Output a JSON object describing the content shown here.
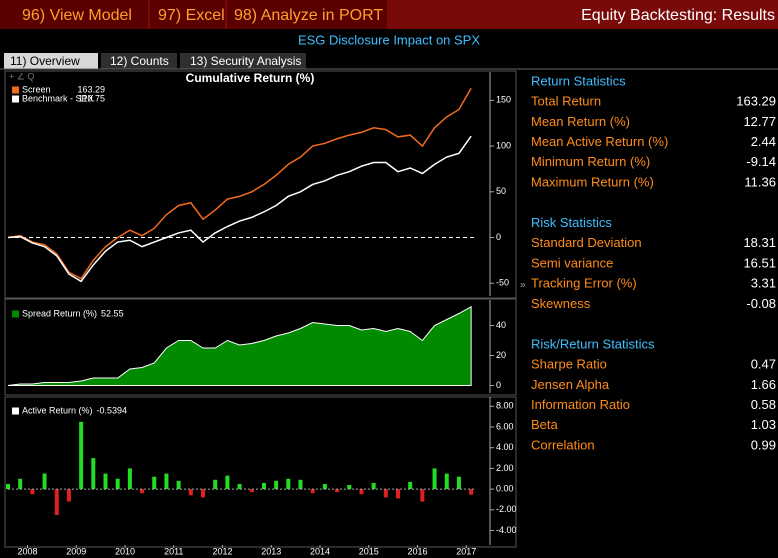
{
  "toolbar": {
    "buttons": [
      "96) View Model",
      "97) Excel",
      "98) Analyze in PORT"
    ],
    "title": "Equity Backtesting: Results"
  },
  "subtitle": "ESG Disclosure Impact on SPX",
  "tabs": [
    "11) Overview",
    "12) Counts",
    "13) Security Analysis"
  ],
  "chart_data": [
    {
      "type": "line",
      "title": "Cumulative Return (%)",
      "x": [
        2007.6,
        2007.85,
        2008.1,
        2008.35,
        2008.6,
        2008.85,
        2009.1,
        2009.35,
        2009.6,
        2009.85,
        2010.1,
        2010.35,
        2010.6,
        2010.85,
        2011.1,
        2011.35,
        2011.6,
        2011.85,
        2012.1,
        2012.35,
        2012.6,
        2012.85,
        2013.1,
        2013.35,
        2013.6,
        2013.85,
        2014.1,
        2014.35,
        2014.6,
        2014.85,
        2015.1,
        2015.35,
        2015.6,
        2015.85,
        2016.1,
        2016.35,
        2016.6,
        2016.85,
        2017.1
      ],
      "series": [
        {
          "name": "Screen",
          "color": "#f26b1d",
          "values": [
            0,
            2,
            -5,
            -8,
            -18,
            -38,
            -45,
            -25,
            -10,
            0,
            8,
            2,
            10,
            25,
            35,
            38,
            20,
            30,
            42,
            45,
            50,
            58,
            68,
            80,
            88,
            100,
            103,
            108,
            112,
            115,
            120,
            118,
            110,
            112,
            100,
            120,
            132,
            140,
            163.29
          ]
        },
        {
          "name": "Benchmark - SPX",
          "color": "#ffffff",
          "values": [
            0,
            1,
            -6,
            -10,
            -20,
            -40,
            -48,
            -30,
            -15,
            -5,
            -3,
            -10,
            -5,
            0,
            5,
            8,
            -5,
            5,
            12,
            18,
            22,
            28,
            35,
            45,
            50,
            58,
            62,
            68,
            72,
            78,
            82,
            82,
            72,
            76,
            70,
            80,
            88,
            92,
            110.75
          ]
        }
      ],
      "xlim": [
        2007.6,
        2017.2
      ],
      "ylim": [
        -64,
        181
      ],
      "yticks": [
        150,
        100,
        50,
        0,
        -50
      ],
      "zero_line": true
    },
    {
      "type": "area",
      "x": [
        2007.6,
        2007.85,
        2008.1,
        2008.35,
        2008.6,
        2008.85,
        2009.1,
        2009.35,
        2009.6,
        2009.85,
        2010.1,
        2010.35,
        2010.6,
        2010.85,
        2011.1,
        2011.35,
        2011.6,
        2011.85,
        2012.1,
        2012.35,
        2012.6,
        2012.85,
        2013.1,
        2013.35,
        2013.6,
        2013.85,
        2014.1,
        2014.35,
        2014.6,
        2014.85,
        2015.1,
        2015.35,
        2015.6,
        2015.85,
        2016.1,
        2016.35,
        2016.6,
        2016.85,
        2017.1
      ],
      "series": [
        {
          "name": "Spread Return (%)",
          "color": "#008a00",
          "values": [
            0,
            1,
            1,
            2,
            2,
            2,
            3,
            5,
            5,
            5,
            11,
            12,
            15,
            25,
            30,
            30,
            25,
            25,
            30,
            27,
            28,
            30,
            33,
            35,
            38,
            42,
            41,
            40,
            40,
            37,
            38,
            36,
            38,
            36,
            30,
            40,
            44,
            48,
            52.55
          ]
        }
      ],
      "xlim": [
        2007.6,
        2017.2
      ],
      "ylim": [
        -5,
        57
      ],
      "yticks": [
        40,
        20,
        0
      ]
    },
    {
      "type": "bar",
      "x": [
        2007.6,
        2007.85,
        2008.1,
        2008.35,
        2008.6,
        2008.85,
        2009.1,
        2009.35,
        2009.6,
        2009.85,
        2010.1,
        2010.35,
        2010.6,
        2010.85,
        2011.1,
        2011.35,
        2011.6,
        2011.85,
        2012.1,
        2012.35,
        2012.6,
        2012.85,
        2013.1,
        2013.35,
        2013.6,
        2013.85,
        2014.1,
        2014.35,
        2014.6,
        2014.85,
        2015.1,
        2015.35,
        2015.6,
        2015.85,
        2016.1,
        2016.35,
        2016.6,
        2016.85,
        2017.1
      ],
      "series": [
        {
          "name": "Active Return (%)",
          "values": [
            0.5,
            1.0,
            -0.5,
            1.5,
            -2.5,
            -1.2,
            6.5,
            3.0,
            1.5,
            1.0,
            2.0,
            -0.4,
            1.2,
            1.5,
            0.8,
            -0.6,
            -0.8,
            0.9,
            1.3,
            0.5,
            -0.3,
            0.6,
            0.8,
            1.0,
            0.9,
            -0.4,
            0.5,
            -0.3,
            0.4,
            -0.5,
            0.6,
            -0.8,
            -0.9,
            0.7,
            -1.2,
            2.0,
            1.5,
            1.2,
            -0.5394
          ]
        }
      ],
      "positive_color": "#22dd22",
      "negative_color": "#e02020",
      "xlim": [
        2007.6,
        2017.2
      ],
      "xticks": [
        2008,
        2009,
        2010,
        2011,
        2012,
        2013,
        2014,
        2015,
        2016,
        2017
      ],
      "ylim": [
        -5.4,
        8.9
      ],
      "yticks": [
        {
          "value": 8,
          "label": "8.00"
        },
        {
          "value": 6,
          "label": "6.00"
        },
        {
          "value": 4,
          "label": "4.00"
        },
        {
          "value": 2,
          "label": "2.00"
        },
        {
          "value": 0,
          "label": "0.00"
        },
        {
          "value": -2,
          "label": "-2.00"
        },
        {
          "value": -4,
          "label": "-4.00"
        }
      ]
    }
  ],
  "stats": [
    {
      "title": "Return Statistics",
      "rows": [
        [
          "Total Return",
          "163.29"
        ],
        [
          "Mean Return (%)",
          "12.77"
        ],
        [
          "Mean Active Return (%)",
          "2.44"
        ],
        [
          "Minimum Return (%)",
          "-9.14"
        ],
        [
          "Maximum Return (%)",
          "11.36"
        ]
      ]
    },
    {
      "title": "Risk Statistics",
      "rows": [
        [
          "Standard Deviation",
          "18.31"
        ],
        [
          "Semi variance",
          "16.51"
        ],
        [
          "Tracking Error (%)",
          "3.31"
        ],
        [
          "Skewness",
          "-0.08"
        ]
      ]
    },
    {
      "title": "Risk/Return Statistics",
      "rows": [
        [
          "Sharpe Ratio",
          "0.47"
        ],
        [
          "Jensen Alpha",
          "1.66"
        ],
        [
          "Information Ratio",
          "0.58"
        ],
        [
          "Beta",
          "1.03"
        ],
        [
          "Correlation",
          "0.99"
        ]
      ]
    }
  ]
}
